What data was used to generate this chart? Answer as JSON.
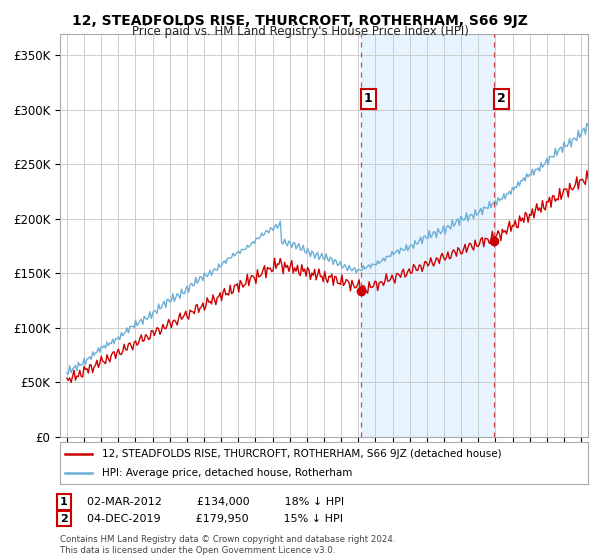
{
  "title": "12, STEADFOLDS RISE, THURCROFT, ROTHERHAM, S66 9JZ",
  "subtitle": "Price paid vs. HM Land Registry's House Price Index (HPI)",
  "ylabel_ticks": [
    "£0",
    "£50K",
    "£100K",
    "£150K",
    "£200K",
    "£250K",
    "£300K",
    "£350K"
  ],
  "ytick_values": [
    0,
    50000,
    100000,
    150000,
    200000,
    250000,
    300000,
    350000
  ],
  "ylim": [
    0,
    370000
  ],
  "xlim_start": 1994.6,
  "xlim_end": 2025.4,
  "hpi_color": "#6baed6",
  "hpi_fill_color": "#ddeeff",
  "price_color": "#cc0000",
  "sale1_x": 2012.17,
  "sale1_y": 134000,
  "sale1_label": "1",
  "sale2_x": 2019.92,
  "sale2_y": 179950,
  "sale2_label": "2",
  "annotation1_date": "02-MAR-2012",
  "annotation1_price": "£134,000",
  "annotation1_hpi": "18% ↓ HPI",
  "annotation2_date": "04-DEC-2019",
  "annotation2_price": "£179,950",
  "annotation2_hpi": "15% ↓ HPI",
  "legend_line1": "12, STEADFOLDS RISE, THURCROFT, ROTHERHAM, S66 9JZ (detached house)",
  "legend_line2": "HPI: Average price, detached house, Rotherham",
  "footer": "Contains HM Land Registry data © Crown copyright and database right 2024.\nThis data is licensed under the Open Government Licence v3.0.",
  "background_color": "#ffffff",
  "grid_color": "#cccccc"
}
